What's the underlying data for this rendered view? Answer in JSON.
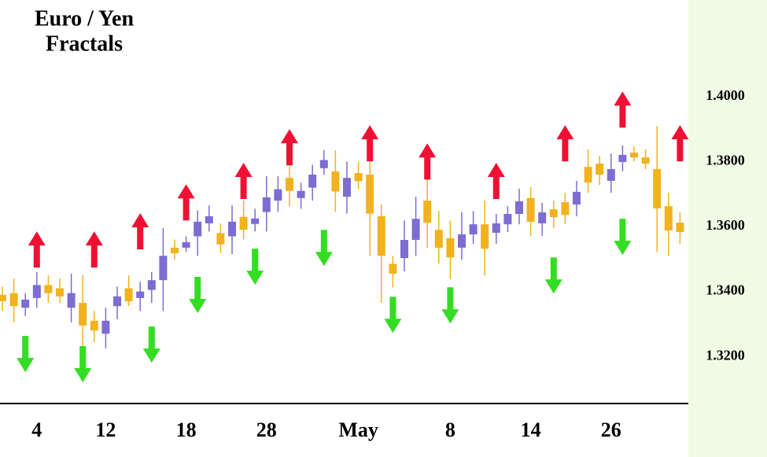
{
  "chart_data": {
    "type": "candlestick",
    "title": "Euro / Yen",
    "subtitle": "Fractals",
    "categories": [
      null,
      null,
      null,
      "4",
      null,
      null,
      null,
      null,
      null,
      "12",
      null,
      null,
      null,
      null,
      null,
      null,
      "18",
      null,
      null,
      null,
      null,
      null,
      null,
      "28",
      null,
      null,
      null,
      null,
      null,
      null,
      null,
      "May",
      null,
      null,
      null,
      null,
      null,
      null,
      null,
      "8",
      null,
      null,
      null,
      null,
      null,
      null,
      "14",
      null,
      null,
      null,
      null,
      null,
      null,
      "26",
      null,
      null,
      null,
      null,
      null,
      null
    ],
    "open": [
      1.339,
      1.3395,
      1.335,
      1.338,
      1.342,
      1.341,
      1.335,
      1.3365,
      1.331,
      1.327,
      1.3355,
      1.341,
      1.338,
      1.3405,
      1.3435,
      1.3535,
      1.3535,
      1.357,
      1.361,
      1.358,
      1.357,
      1.363,
      1.3608,
      1.3645,
      1.368,
      1.375,
      1.3688,
      1.372,
      1.378,
      1.377,
      1.3692,
      1.3765,
      1.376,
      1.3632,
      1.3485,
      1.3503,
      1.3559,
      1.368,
      1.359,
      1.3564,
      1.3535,
      1.3576,
      1.3607,
      1.3581,
      1.3607,
      1.3639,
      1.3688,
      1.361,
      1.3653,
      1.3675,
      1.3668,
      1.3784,
      1.3794,
      1.3741,
      1.3799,
      1.3828,
      1.3813,
      1.3777,
      1.3663,
      1.3612
    ],
    "high": [
      1.3415,
      1.344,
      1.3395,
      1.346,
      1.345,
      1.344,
      1.3455,
      1.345,
      1.334,
      1.335,
      1.3415,
      1.345,
      1.343,
      1.346,
      1.3595,
      1.356,
      1.357,
      1.365,
      1.3665,
      1.361,
      1.3665,
      1.368,
      1.3655,
      1.3755,
      1.3755,
      1.38,
      1.3735,
      1.379,
      1.3835,
      1.3835,
      1.38,
      1.38,
      1.38,
      1.3668,
      1.351,
      1.3619,
      1.3692,
      1.3753,
      1.3648,
      1.3619,
      1.3644,
      1.3648,
      1.368,
      1.3639,
      1.3663,
      1.3717,
      1.3721,
      1.3673,
      1.368,
      1.3704,
      1.3741,
      1.3838,
      1.3818,
      1.3825,
      1.385,
      1.3847,
      1.3838,
      1.391,
      1.3704,
      1.3644
    ],
    "low": [
      1.334,
      1.3305,
      1.3325,
      1.335,
      1.3365,
      1.3365,
      1.3305,
      1.323,
      1.3245,
      1.3225,
      1.3315,
      1.3355,
      1.334,
      1.3365,
      1.334,
      1.3498,
      1.3522,
      1.351,
      1.3585,
      1.3518,
      1.3515,
      1.356,
      1.3585,
      1.3585,
      1.3645,
      1.3662,
      1.3655,
      1.368,
      1.376,
      1.3645,
      1.364,
      1.3715,
      1.351,
      1.3365,
      1.3413,
      1.3462,
      1.351,
      1.3535,
      1.3486,
      1.3438,
      1.3498,
      1.3547,
      1.345,
      1.3547,
      1.3583,
      1.3607,
      1.3571,
      1.3571,
      1.3595,
      1.3607,
      1.3632,
      1.3704,
      1.3728,
      1.3704,
      1.377,
      1.3801,
      1.3777,
      1.3522,
      1.351,
      1.3547
    ],
    "close": [
      1.337,
      1.3355,
      1.3375,
      1.342,
      1.3395,
      1.3385,
      1.3395,
      1.3295,
      1.328,
      1.331,
      1.3385,
      1.337,
      1.34,
      1.3435,
      1.351,
      1.3518,
      1.3552,
      1.3615,
      1.3632,
      1.3545,
      1.3615,
      1.359,
      1.3625,
      1.369,
      1.3715,
      1.371,
      1.371,
      1.376,
      1.3805,
      1.3708,
      1.375,
      1.374,
      1.364,
      1.351,
      1.3455,
      1.3559,
      1.3624,
      1.3612,
      1.3535,
      1.3505,
      1.3576,
      1.3607,
      1.3532,
      1.361,
      1.3639,
      1.3678,
      1.3615,
      1.3644,
      1.3629,
      1.3636,
      1.3707,
      1.3736,
      1.376,
      1.3777,
      1.3821,
      1.3813,
      1.3794,
      1.3656,
      1.3588,
      1.3583
    ],
    "up_color": "#7d6cd2",
    "down_color": "#f2b21e",
    "fractals_up": {
      "color": "#ee1133",
      "values": [
        null,
        null,
        null,
        1.3474,
        null,
        null,
        null,
        null,
        1.3474,
        null,
        null,
        null,
        1.353,
        null,
        null,
        null,
        1.3619,
        null,
        null,
        null,
        null,
        1.3685,
        null,
        null,
        null,
        1.3789,
        null,
        null,
        null,
        null,
        null,
        null,
        1.3801,
        null,
        null,
        null,
        null,
        1.3745,
        null,
        null,
        null,
        null,
        null,
        1.3685,
        null,
        null,
        null,
        null,
        null,
        1.3801,
        null,
        null,
        null,
        null,
        1.3905,
        null,
        null,
        null,
        null,
        1.3801
      ]
    },
    "fractals_down": {
      "color": "#33dd22",
      "values": [
        null,
        null,
        1.3263,
        null,
        null,
        null,
        null,
        1.3232,
        null,
        null,
        null,
        null,
        null,
        1.3292,
        null,
        null,
        null,
        1.3445,
        null,
        null,
        null,
        null,
        1.3532,
        null,
        null,
        null,
        null,
        null,
        1.359,
        null,
        null,
        null,
        null,
        null,
        1.3384,
        null,
        null,
        null,
        null,
        1.3413,
        null,
        null,
        null,
        null,
        null,
        null,
        null,
        null,
        1.3505,
        null,
        null,
        null,
        null,
        null,
        1.3624,
        null,
        null,
        null,
        null,
        null
      ]
    },
    "ylim": [
      1.3055,
      1.4298
    ],
    "yticks": [
      {
        "value": 1.32,
        "label": "1.3200"
      },
      {
        "value": 1.34,
        "label": "1.3400"
      },
      {
        "value": 1.36,
        "label": "1.3600"
      },
      {
        "value": 1.38,
        "label": "1.3800"
      },
      {
        "value": 1.4,
        "label": "1.4000"
      }
    ]
  }
}
